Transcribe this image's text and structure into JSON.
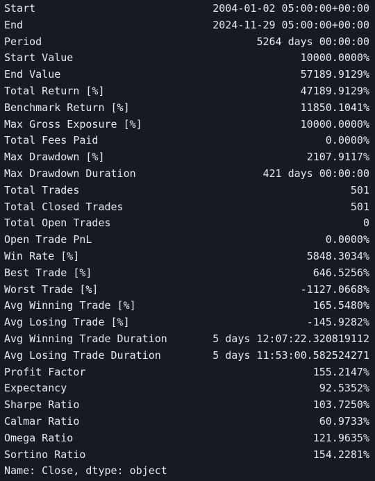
{
  "rows": [
    {
      "key": "Start",
      "value": "2004-01-02 05:00:00+00:00"
    },
    {
      "key": "End",
      "value": "2024-11-29 05:00:00+00:00"
    },
    {
      "key": "Period",
      "value": "5264 days 00:00:00"
    },
    {
      "key": "Start Value",
      "value": "10000.0000%"
    },
    {
      "key": "End Value",
      "value": "57189.9129%"
    },
    {
      "key": "Total Return [%]",
      "value": "47189.9129%"
    },
    {
      "key": "Benchmark Return [%]",
      "value": "11850.1041%"
    },
    {
      "key": "Max Gross Exposure [%]",
      "value": "10000.0000%"
    },
    {
      "key": "Total Fees Paid",
      "value": "0.0000%"
    },
    {
      "key": "Max Drawdown [%]",
      "value": "2107.9117%"
    },
    {
      "key": "Max Drawdown Duration",
      "value": "421 days 00:00:00"
    },
    {
      "key": "Total Trades",
      "value": "501"
    },
    {
      "key": "Total Closed Trades",
      "value": "501"
    },
    {
      "key": "Total Open Trades",
      "value": "0"
    },
    {
      "key": "Open Trade PnL",
      "value": "0.0000%"
    },
    {
      "key": "Win Rate [%]",
      "value": "5848.3034%"
    },
    {
      "key": "Best Trade [%]",
      "value": "646.5256%"
    },
    {
      "key": "Worst Trade [%]",
      "value": "-1127.0668%"
    },
    {
      "key": "Avg Winning Trade [%]",
      "value": "165.5480%"
    },
    {
      "key": "Avg Losing Trade [%]",
      "value": "-145.9282%"
    },
    {
      "key": "Avg Winning Trade Duration",
      "value": "5 days 12:07:22.320819112"
    },
    {
      "key": "Avg Losing Trade Duration",
      "value": "5 days 11:53:00.582524271"
    },
    {
      "key": "Profit Factor",
      "value": "155.2147%"
    },
    {
      "key": "Expectancy",
      "value": "92.5352%"
    },
    {
      "key": "Sharpe Ratio",
      "value": "103.7250%"
    },
    {
      "key": "Calmar Ratio",
      "value": "60.9733%"
    },
    {
      "key": "Omega Ratio",
      "value": "121.9635%"
    },
    {
      "key": "Sortino Ratio",
      "value": "154.2281%"
    }
  ],
  "footer": "Name: Close, dtype: object",
  "colors": {
    "background": "#161a23",
    "text": "#e6e9ef"
  }
}
